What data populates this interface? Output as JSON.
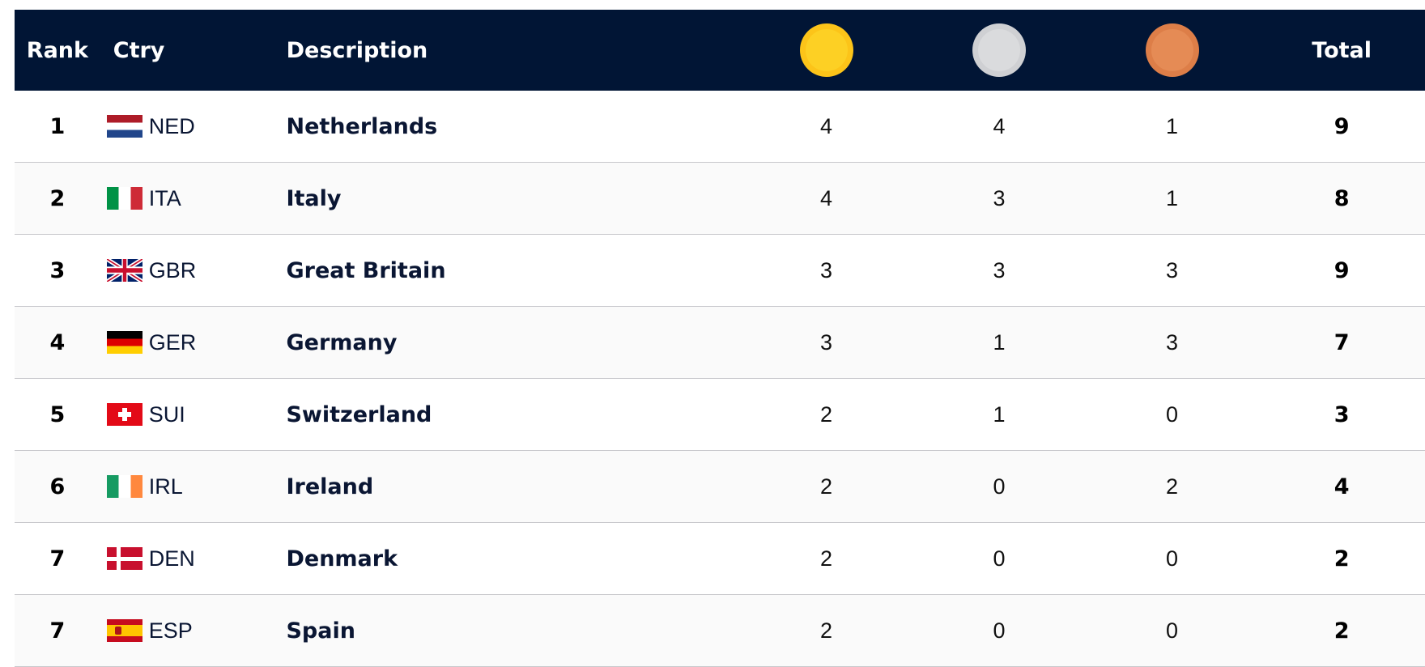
{
  "header": {
    "rank": "Rank",
    "ctry": "Ctry",
    "description": "Description",
    "gold_icon": "gold-medal-icon",
    "silver_icon": "silver-medal-icon",
    "bronze_icon": "bronze-medal-icon",
    "total": "Total"
  },
  "colors": {
    "header_bg": "#011535",
    "gold": "#fcc419",
    "silver": "#cfd0d3",
    "bronze": "#dd7e48"
  },
  "rows": [
    {
      "rank": "1",
      "flag": "ned",
      "code": "NED",
      "name": "Netherlands",
      "gold": "4",
      "silver": "4",
      "bronze": "1",
      "total": "9"
    },
    {
      "rank": "2",
      "flag": "ita",
      "code": "ITA",
      "name": "Italy",
      "gold": "4",
      "silver": "3",
      "bronze": "1",
      "total": "8"
    },
    {
      "rank": "3",
      "flag": "gbr",
      "code": "GBR",
      "name": "Great Britain",
      "gold": "3",
      "silver": "3",
      "bronze": "3",
      "total": "9"
    },
    {
      "rank": "4",
      "flag": "ger",
      "code": "GER",
      "name": "Germany",
      "gold": "3",
      "silver": "1",
      "bronze": "3",
      "total": "7"
    },
    {
      "rank": "5",
      "flag": "sui",
      "code": "SUI",
      "name": "Switzerland",
      "gold": "2",
      "silver": "1",
      "bronze": "0",
      "total": "3"
    },
    {
      "rank": "6",
      "flag": "irl",
      "code": "IRL",
      "name": "Ireland",
      "gold": "2",
      "silver": "0",
      "bronze": "2",
      "total": "4"
    },
    {
      "rank": "7",
      "flag": "den",
      "code": "DEN",
      "name": "Denmark",
      "gold": "2",
      "silver": "0",
      "bronze": "0",
      "total": "2"
    },
    {
      "rank": "7",
      "flag": "esp",
      "code": "ESP",
      "name": "Spain",
      "gold": "2",
      "silver": "0",
      "bronze": "0",
      "total": "2"
    }
  ]
}
